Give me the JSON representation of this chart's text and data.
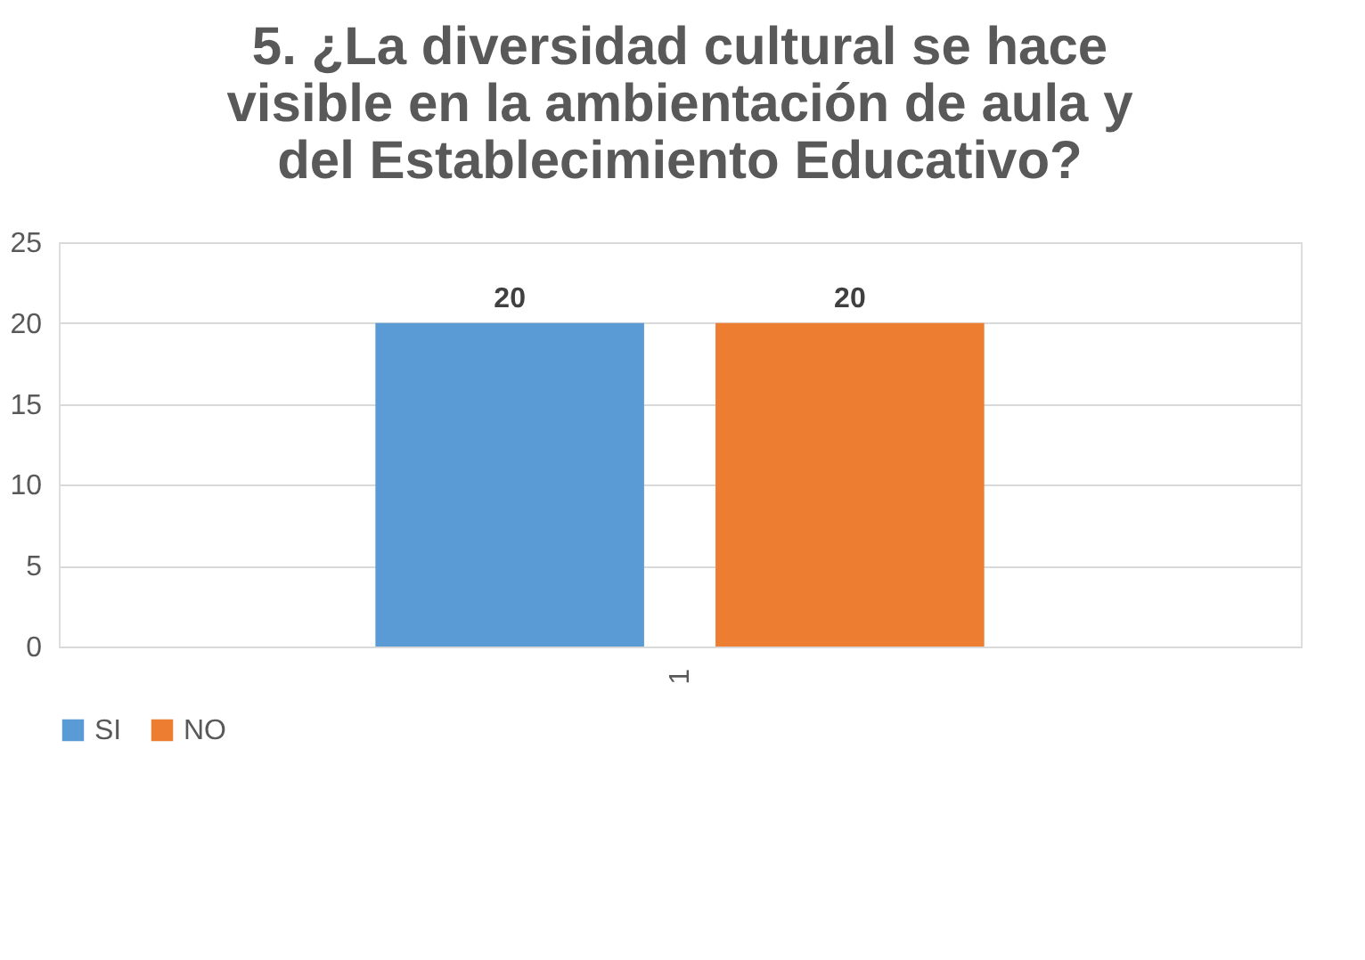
{
  "chart_data": {
    "type": "bar",
    "title": "5. ¿La diversidad cultural se hace visible en la ambientación de aula y del Establecimiento Educativo?",
    "categories": [
      "1"
    ],
    "series": [
      {
        "name": "SI",
        "color": "#5b9bd5",
        "values": [
          20
        ]
      },
      {
        "name": "NO",
        "color": "#ed7d31",
        "values": [
          20
        ]
      }
    ],
    "ylim": [
      0,
      25
    ],
    "yticks": [
      0,
      5,
      10,
      15,
      20,
      25
    ],
    "grid": "y",
    "legend": "bottom",
    "data_labels": true
  }
}
